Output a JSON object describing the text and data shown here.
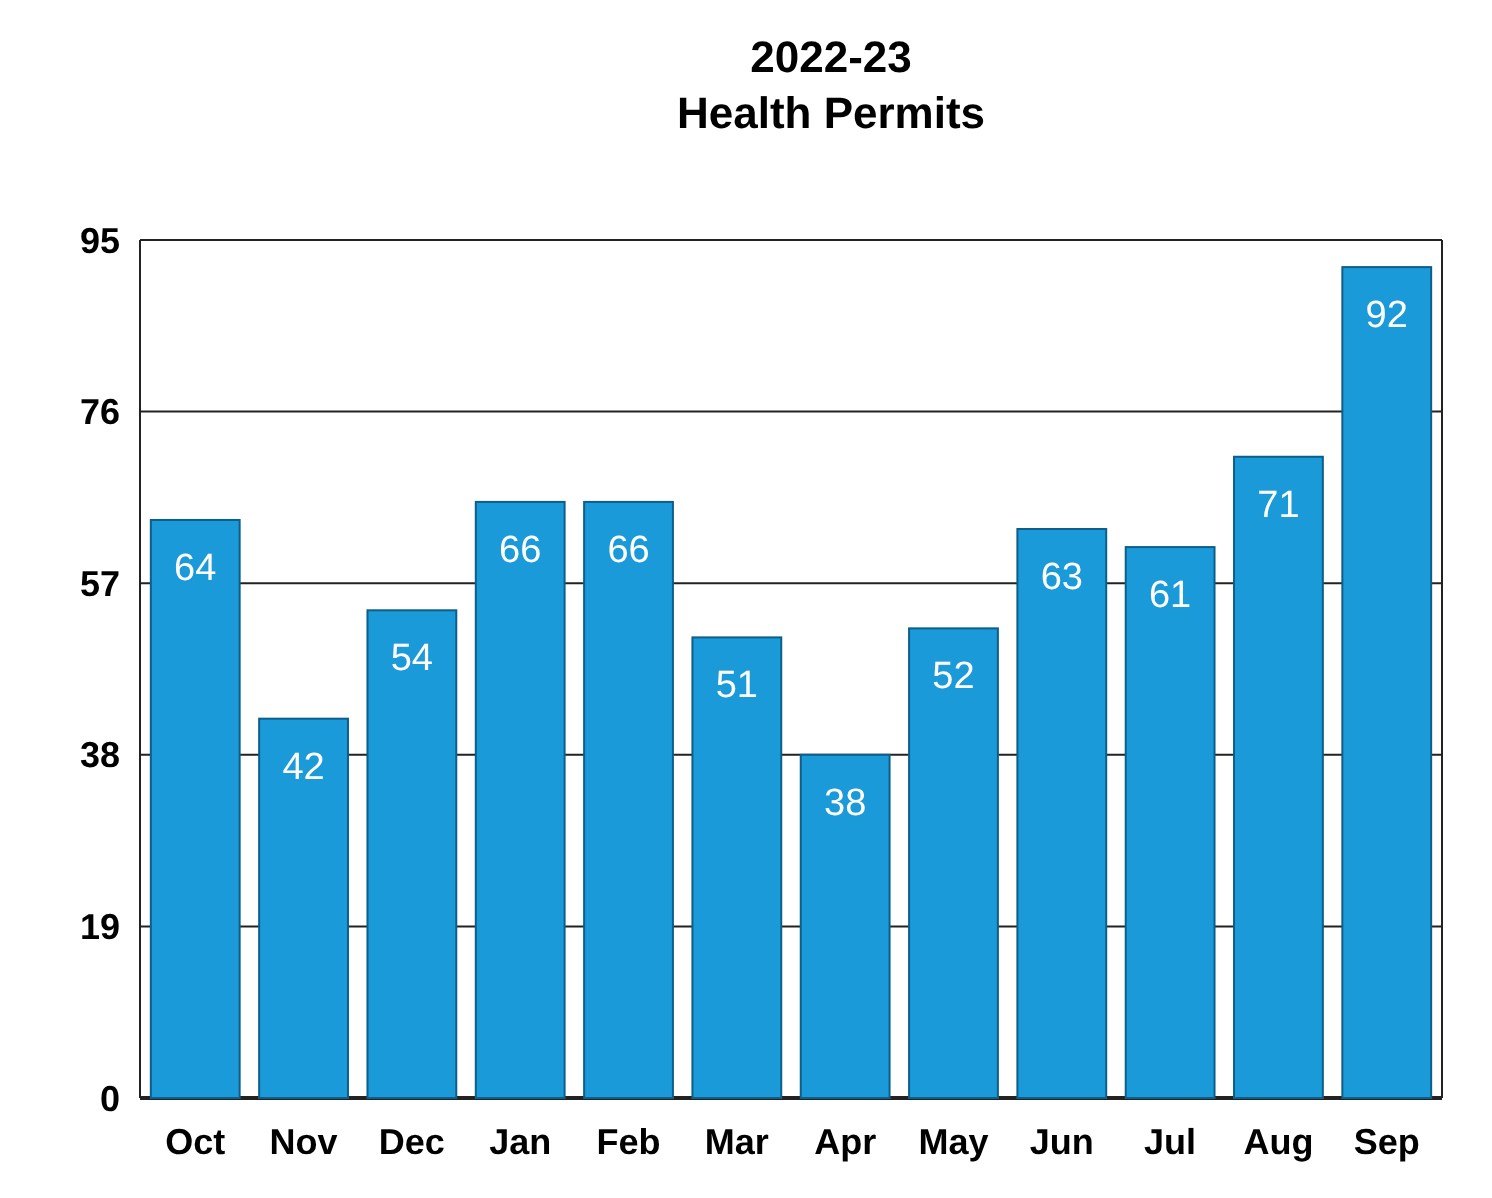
{
  "chart_data": {
    "type": "bar",
    "title": "2022-23\nHealth Permits",
    "categories": [
      "Oct",
      "Nov",
      "Dec",
      "Jan",
      "Feb",
      "Mar",
      "Apr",
      "May",
      "Jun",
      "Jul",
      "Aug",
      "Sep"
    ],
    "values": [
      64,
      42,
      54,
      66,
      66,
      51,
      38,
      52,
      63,
      61,
      71,
      92
    ],
    "color": "#1a9ad8",
    "ylim": [
      0,
      95
    ],
    "yticks": [
      0,
      19,
      38,
      57,
      76,
      95
    ],
    "grid": "y",
    "data_labels": true
  }
}
